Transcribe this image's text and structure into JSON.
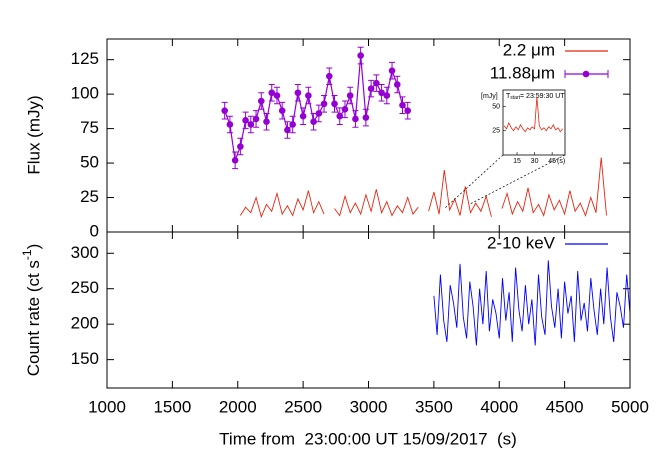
{
  "chart_data": [
    {
      "type": "line",
      "ylabel": "Flux (mJy)",
      "xlim": [
        1000,
        5000
      ],
      "xticks": [
        1000,
        1500,
        2000,
        2500,
        3000,
        3500,
        4000,
        4500,
        5000
      ],
      "show_xtick_labels": false,
      "ylim": [
        0,
        140
      ],
      "yticks": [
        0,
        25,
        50,
        75,
        100,
        125
      ],
      "legend": "top-right",
      "series": [
        {
          "name": "2.2 μm",
          "color": "#e8250f",
          "style": "line",
          "x": [
            2020,
            2060,
            2100,
            2140,
            2180,
            2220,
            2260,
            2300,
            2340,
            2380,
            2420,
            2460,
            2500,
            2540,
            2580,
            2620,
            2660,
            2700,
            2740,
            2780,
            2820,
            2860,
            2900,
            2940,
            2980,
            3020,
            3060,
            3100,
            3140,
            3180,
            3220,
            3260,
            3300,
            3340,
            3380,
            3420,
            3460,
            3500,
            3540,
            3580,
            3620,
            3660,
            3700,
            3740,
            3780,
            3820,
            3860,
            3900,
            3940,
            3980,
            4020,
            4060,
            4100,
            4140,
            4180,
            4220,
            4260,
            4300,
            4340,
            4380,
            4420,
            4460,
            4500,
            4540,
            4580,
            4620,
            4660,
            4700,
            4740,
            4780,
            4820
          ],
          "values": [
            12,
            18,
            14,
            25,
            11,
            20,
            15,
            28,
            13,
            19,
            12,
            24,
            16,
            30,
            14,
            22,
            13,
            null,
            17,
            12,
            26,
            14,
            21,
            13,
            27,
            15,
            31,
            14,
            22,
            12,
            19,
            14,
            25,
            13,
            18,
            null,
            15,
            29,
            13,
            45,
            16,
            24,
            12,
            33,
            14,
            21,
            15,
            26,
            11,
            null,
            17,
            28,
            13,
            22,
            15,
            32,
            14,
            20,
            12,
            27,
            16,
            23,
            13,
            30,
            15,
            21,
            12,
            25,
            14,
            54,
            12
          ]
        },
        {
          "name": "11.88μm",
          "color": "#9400d3",
          "style": "errorbar",
          "x": [
            1900,
            1940,
            1980,
            2020,
            2060,
            2100,
            2140,
            2180,
            2220,
            2260,
            2300,
            2340,
            2380,
            2420,
            2460,
            2500,
            2540,
            2580,
            2620,
            2660,
            2700,
            2740,
            2780,
            2820,
            2860,
            2900,
            2940,
            2980,
            3020,
            3060,
            3100,
            3140,
            3180,
            3220,
            3260,
            3300
          ],
          "values": [
            88,
            78,
            52,
            62,
            81,
            78,
            82,
            95,
            80,
            101,
            99,
            88,
            74,
            78,
            101,
            84,
            99,
            80,
            86,
            93,
            113,
            93,
            84,
            89,
            99,
            82,
            128,
            83,
            104,
            108,
            101,
            99,
            117,
            107,
            92,
            88
          ],
          "errors": [
            6,
            6,
            6,
            6,
            6,
            6,
            6,
            6,
            6,
            6,
            6,
            6,
            6,
            6,
            6,
            6,
            6,
            6,
            6,
            6,
            6,
            6,
            6,
            6,
            6,
            6,
            6,
            6,
            6,
            6,
            6,
            6,
            6,
            6,
            6,
            6
          ]
        }
      ],
      "inset": {
        "type": "line",
        "ylabel": "[mJy]",
        "title": "T",
        "title_sub": "start",
        "title_rest": "= 23:59:30 UT",
        "xlabel": "(s)",
        "xlim": [
          3,
          56
        ],
        "xticks": [
          15,
          30,
          45
        ],
        "ylim": [
          0,
          67
        ],
        "yticks": [
          25,
          50
        ],
        "color": "#e8250f",
        "x": [
          4,
          6,
          8,
          10,
          12,
          14,
          16,
          18,
          20,
          22,
          24,
          26,
          28,
          30,
          32,
          34,
          36,
          38,
          40,
          42,
          44,
          46,
          48,
          50,
          52,
          54
        ],
        "values": [
          30,
          27,
          33,
          28,
          25,
          29,
          26,
          31,
          27,
          24,
          28,
          26,
          29,
          27,
          60,
          30,
          26,
          28,
          25,
          29,
          27,
          31,
          26,
          28,
          24,
          27
        ]
      }
    },
    {
      "type": "line",
      "ylabel": "Count rate (ct s",
      "ylabel_sup": "-1",
      "ylabel_end": ")",
      "xlabel": "Time from  23:00:00 UT 15/09/2017  (s)",
      "xlim": [
        1000,
        5000
      ],
      "xticks": [
        1000,
        1500,
        2000,
        2500,
        3000,
        3500,
        4000,
        4500,
        5000
      ],
      "show_xtick_labels": true,
      "ylim": [
        110,
        330
      ],
      "yticks": [
        150,
        200,
        250,
        300
      ],
      "legend": "top-right",
      "series": [
        {
          "name": "2-10 keV",
          "color": "#0000ff",
          "style": "line",
          "x": [
            3500,
            3525,
            3550,
            3575,
            3600,
            3625,
            3650,
            3675,
            3700,
            3725,
            3750,
            3775,
            3800,
            3825,
            3850,
            3875,
            3900,
            3925,
            3950,
            3975,
            4000,
            4025,
            4050,
            4075,
            4100,
            4125,
            4150,
            4175,
            4200,
            4225,
            4250,
            4275,
            4300,
            4325,
            4350,
            4375,
            4400,
            4425,
            4450,
            4475,
            4500,
            4525,
            4550,
            4575,
            4600,
            4625,
            4650,
            4675,
            4700,
            4725,
            4750,
            4775,
            4800,
            4825,
            4850,
            4875,
            4900,
            4925,
            4950,
            4975,
            5000
          ],
          "values": [
            240,
            185,
            270,
            205,
            175,
            255,
            230,
            195,
            285,
            210,
            180,
            260,
            225,
            170,
            250,
            200,
            275,
            190,
            235,
            215,
            180,
            265,
            205,
            245,
            175,
            280,
            220,
            190,
            255,
            200,
            235,
            170,
            270,
            210,
            185,
            290,
            225,
            195,
            250,
            180,
            260,
            215,
            240,
            175,
            275,
            205,
            230,
            190,
            265,
            220,
            185,
            250,
            200,
            280,
            210,
            175,
            245,
            225,
            195,
            270,
            215
          ]
        }
      ]
    }
  ]
}
